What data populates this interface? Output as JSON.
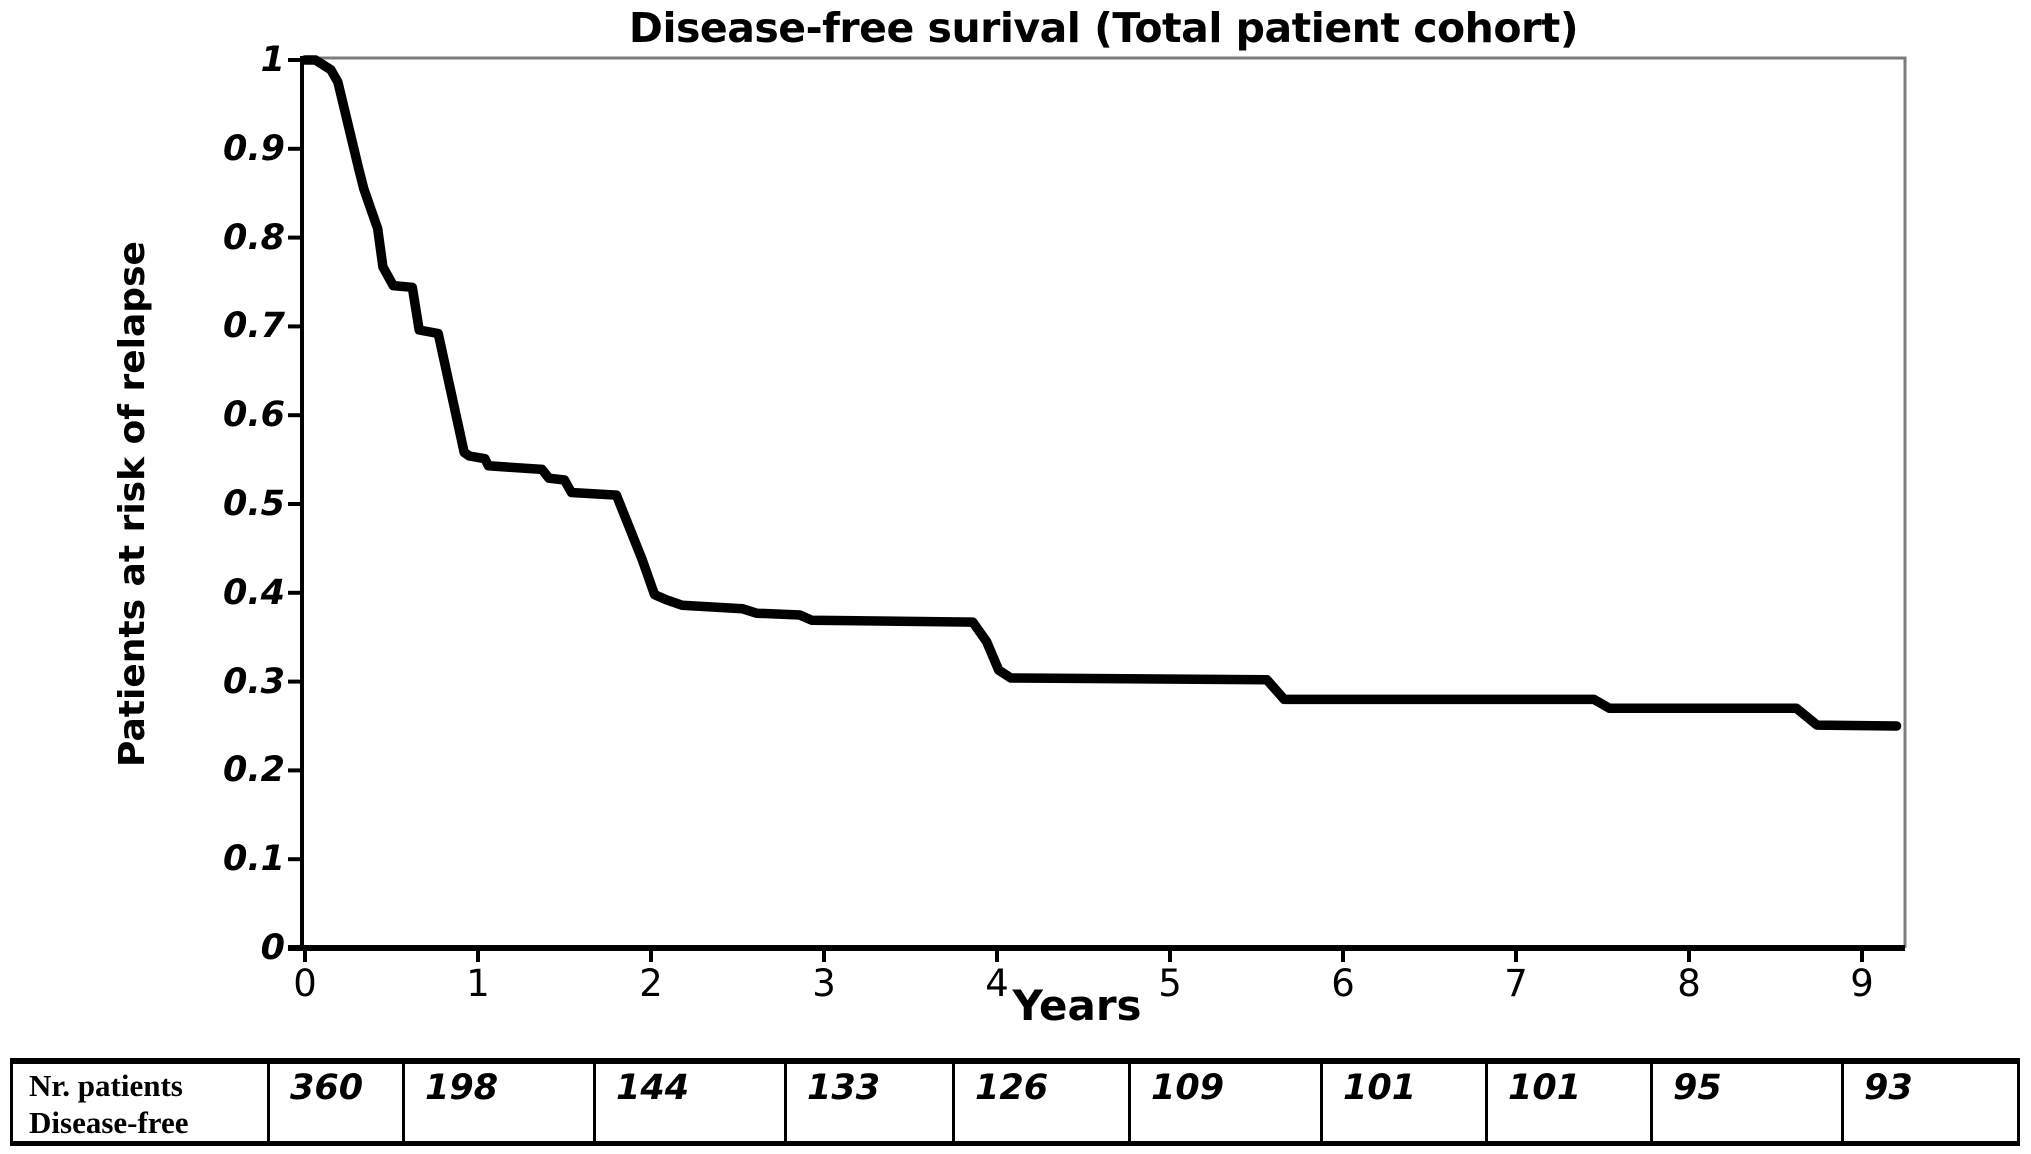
{
  "colors": {
    "curve": "#000000",
    "axis": "#000000",
    "frame": "#7c7c7c",
    "background": "#ffffff",
    "text": "#000000"
  },
  "chart_data": {
    "type": "line",
    "title": "Disease-free surival (Total patient cohort)",
    "xlabel": "Years",
    "ylabel": "Patients at risk of relapse",
    "xlim": [
      0,
      9.25
    ],
    "ylim": [
      0,
      1
    ],
    "grid": false,
    "legend": null,
    "x_ticks": [
      {
        "value": 0,
        "label": "0"
      },
      {
        "value": 1,
        "label": "1"
      },
      {
        "value": 2,
        "label": "2"
      },
      {
        "value": 3,
        "label": "3"
      },
      {
        "value": 4,
        "label": "4"
      },
      {
        "value": 5,
        "label": "5"
      },
      {
        "value": 6,
        "label": "6"
      },
      {
        "value": 7,
        "label": "7"
      },
      {
        "value": 8,
        "label": "8"
      },
      {
        "value": 9,
        "label": "9"
      }
    ],
    "y_ticks": [
      {
        "value": 1.0,
        "label": "1"
      },
      {
        "value": 0.9,
        "label": "0.9"
      },
      {
        "value": 0.8,
        "label": "0.8"
      },
      {
        "value": 0.7,
        "label": "0.7"
      },
      {
        "value": 0.6,
        "label": "0.6"
      },
      {
        "value": 0.5,
        "label": "0.5"
      },
      {
        "value": 0.4,
        "label": "0.4"
      },
      {
        "value": 0.3,
        "label": "0.3"
      },
      {
        "value": 0.2,
        "label": "0.2"
      },
      {
        "value": 0.1,
        "label": "0.1"
      },
      {
        "value": 0.0,
        "label": "0"
      }
    ],
    "series": [
      {
        "name": "Disease-free survival (Total patient cohort)",
        "color": "#000000",
        "points": [
          [
            0,
            1.0
          ],
          [
            0.06,
            1.0
          ],
          [
            0.15,
            0.989
          ],
          [
            0.19,
            0.975
          ],
          [
            0.31,
            0.878
          ],
          [
            0.34,
            0.855
          ],
          [
            0.42,
            0.81
          ],
          [
            0.45,
            0.767
          ],
          [
            0.51,
            0.746
          ],
          [
            0.62,
            0.744
          ],
          [
            0.66,
            0.696
          ],
          [
            0.77,
            0.692
          ],
          [
            0.92,
            0.558
          ],
          [
            0.95,
            0.554
          ],
          [
            1.04,
            0.551
          ],
          [
            1.06,
            0.543
          ],
          [
            1.37,
            0.539
          ],
          [
            1.41,
            0.529
          ],
          [
            1.5,
            0.527
          ],
          [
            1.54,
            0.513
          ],
          [
            1.8,
            0.51
          ],
          [
            1.95,
            0.437
          ],
          [
            2.02,
            0.398
          ],
          [
            2.09,
            0.392
          ],
          [
            2.18,
            0.386
          ],
          [
            2.53,
            0.382
          ],
          [
            2.61,
            0.377
          ],
          [
            2.86,
            0.375
          ],
          [
            2.93,
            0.369
          ],
          [
            3.86,
            0.367
          ],
          [
            3.94,
            0.345
          ],
          [
            4.01,
            0.313
          ],
          [
            4.08,
            0.304
          ],
          [
            5.56,
            0.302
          ],
          [
            5.66,
            0.28
          ],
          [
            7.45,
            0.28
          ],
          [
            7.54,
            0.27
          ],
          [
            8.62,
            0.27
          ],
          [
            8.74,
            0.251
          ],
          [
            9.2,
            0.25
          ]
        ]
      }
    ],
    "risk_table": {
      "row_label_line1": "Nr. patients",
      "row_label_line2": "Disease-free",
      "values": [
        "360",
        "198",
        "144",
        "133",
        "126",
        "109",
        "101",
        "101",
        "95",
        "93"
      ]
    }
  }
}
